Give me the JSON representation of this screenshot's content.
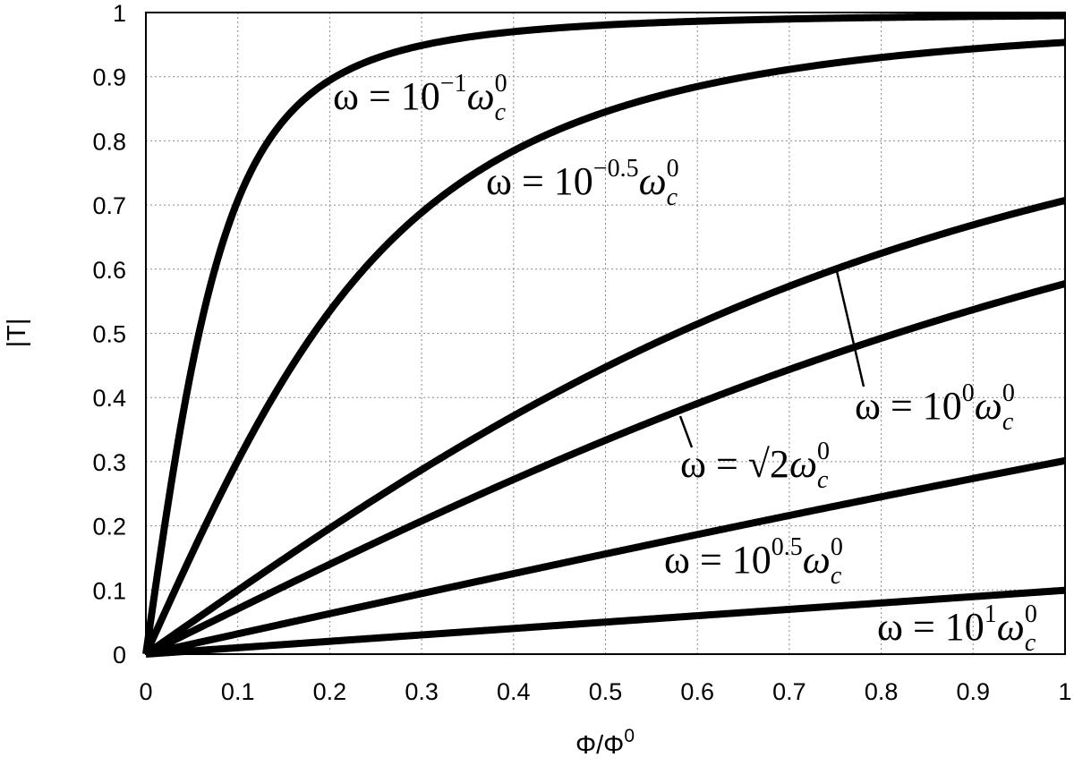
{
  "chart_data": {
    "type": "line",
    "title": "",
    "xlabel": "Φ/Φ0",
    "ylabel": "|T|",
    "xlim": [
      0,
      1
    ],
    "ylim": [
      0,
      1
    ],
    "grid": true,
    "legend": "none (inline annotations)",
    "x_ticks": [
      "0",
      "0.1",
      "0.2",
      "0.3",
      "0.4",
      "0.5",
      "0.6",
      "0.7",
      "0.8",
      "0.9",
      "1"
    ],
    "y_ticks": [
      "0",
      "0.1",
      "0.2",
      "0.3",
      "0.4",
      "0.5",
      "0.6",
      "0.7",
      "0.8",
      "0.9",
      "1"
    ],
    "x": [
      0,
      0.02,
      0.05,
      0.1,
      0.15,
      0.2,
      0.25,
      0.3,
      0.4,
      0.5,
      0.6,
      0.7,
      0.8,
      0.9,
      1.0
    ],
    "series": [
      {
        "name": "ω = 10^-1 ω_c^0",
        "values": [
          0,
          0.196,
          0.447,
          0.707,
          0.832,
          0.894,
          0.928,
          0.949,
          0.97,
          0.981,
          0.986,
          0.99,
          0.992,
          0.994,
          0.995
        ]
      },
      {
        "name": "ω = 10^-0.5 ω_c^0",
        "values": [
          0,
          0.063,
          0.156,
          0.302,
          0.429,
          0.535,
          0.62,
          0.688,
          0.784,
          0.845,
          0.885,
          0.911,
          0.93,
          0.943,
          0.953
        ]
      },
      {
        "name": "ω = 10^0 ω_c^0",
        "values": [
          0,
          0.02,
          0.05,
          0.1,
          0.148,
          0.196,
          0.243,
          0.287,
          0.371,
          0.447,
          0.514,
          0.573,
          0.625,
          0.669,
          0.707
        ]
      },
      {
        "name": "ω = √2 ω_c^0",
        "values": [
          0,
          0.014,
          0.035,
          0.071,
          0.105,
          0.14,
          0.174,
          0.208,
          0.272,
          0.333,
          0.391,
          0.444,
          0.492,
          0.537,
          0.577
        ]
      },
      {
        "name": "ω = 10^0.5 ω_c^0",
        "values": [
          0,
          0.006,
          0.016,
          0.032,
          0.047,
          0.063,
          0.079,
          0.094,
          0.125,
          0.156,
          0.186,
          0.216,
          0.245,
          0.274,
          0.302
        ]
      },
      {
        "name": "ω = 10^1 ω_c^0",
        "values": [
          0,
          0.002,
          0.005,
          0.01,
          0.015,
          0.02,
          0.025,
          0.03,
          0.04,
          0.05,
          0.06,
          0.07,
          0.08,
          0.09,
          0.1
        ]
      }
    ],
    "annotations": [
      {
        "base": "ω = 10",
        "exp": "−1",
        "tail": "ω",
        "sub": "c",
        "sup": "0"
      },
      {
        "base": "ω = 10",
        "exp": "−0.5",
        "tail": "ω",
        "sub": "c",
        "sup": "0"
      },
      {
        "base": "ω = 10",
        "exp": "0",
        "tail": "ω",
        "sub": "c",
        "sup": "0"
      },
      {
        "base": "ω = √2",
        "exp": "",
        "tail": "ω",
        "sub": "c",
        "sup": "0"
      },
      {
        "base": "ω = 10",
        "exp": "0.5",
        "tail": "ω",
        "sub": "c",
        "sup": "0"
      },
      {
        "base": "ω = 10",
        "exp": "1",
        "tail": "ω",
        "sub": "c",
        "sup": "0"
      }
    ],
    "style": {
      "line_color": "#000000",
      "grid_color": "#888888"
    }
  }
}
